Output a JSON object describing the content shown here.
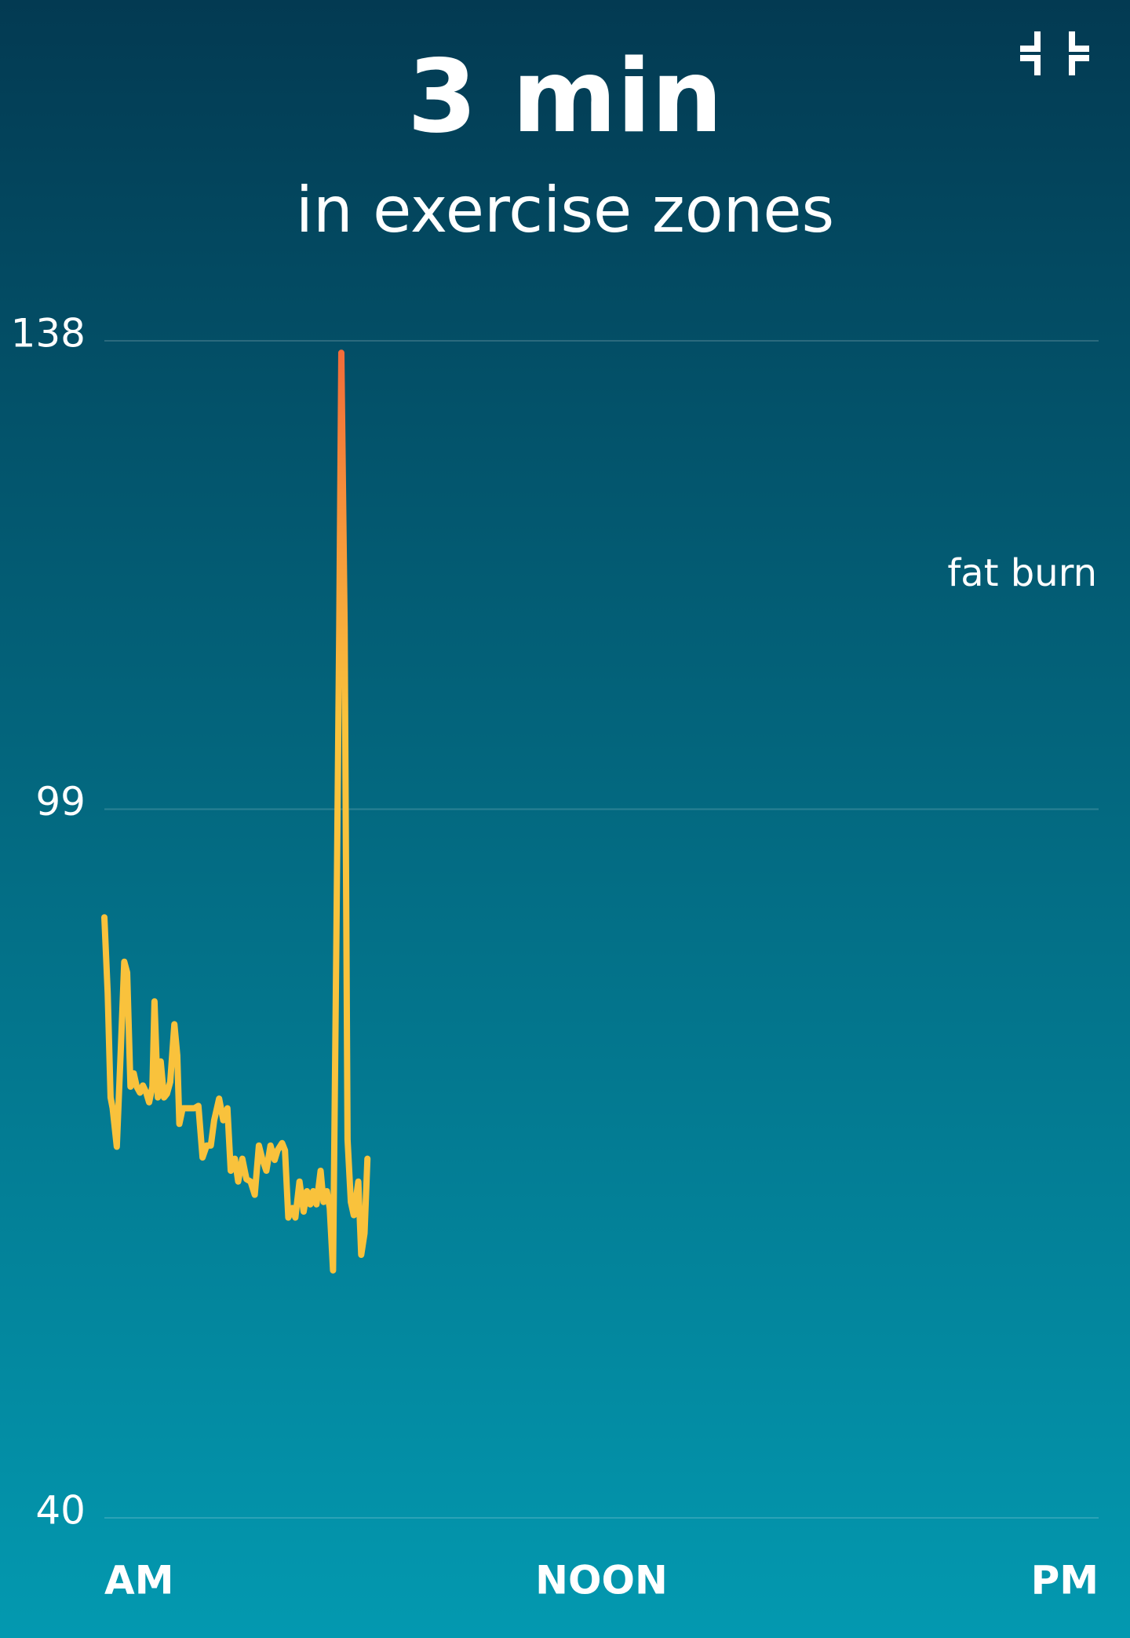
{
  "chart_data": {
    "type": "line",
    "title": "3 min",
    "subtitle": "in exercise zones",
    "annotation": "fat burn",
    "x": [
      0,
      0.08,
      0.15,
      0.2,
      0.3,
      0.4,
      0.48,
      0.55,
      0.63,
      0.71,
      0.78,
      0.86,
      0.93,
      1.01,
      1.08,
      1.16,
      1.21,
      1.29,
      1.36,
      1.44,
      1.51,
      1.59,
      1.69,
      1.76,
      1.81,
      1.89,
      2.02,
      2.17,
      2.27,
      2.37,
      2.47,
      2.57,
      2.65,
      2.77,
      2.87,
      2.97,
      3.05,
      3.15,
      3.23,
      3.33,
      3.43,
      3.53,
      3.63,
      3.73,
      3.81,
      3.91,
      4.01,
      4.11,
      4.18,
      4.29,
      4.36,
      4.44,
      4.54,
      4.61,
      4.71,
      4.81,
      4.89,
      4.97,
      5.04,
      5.12,
      5.22,
      5.29,
      5.37,
      5.44,
      5.52,
      5.6,
      5.67,
      5.72,
      5.8,
      5.87,
      5.95,
      6.02,
      6.13,
      6.2,
      6.28,
      6.35
    ],
    "series": [
      {
        "color": "#f9c23c",
        "values": [
          90,
          83.7,
          75,
          74.1,
          70.9,
          79.3,
          86.3,
          85.4,
          75.9,
          77,
          75.9,
          75.4,
          76,
          75.4,
          74.6,
          75.9,
          83,
          75,
          78,
          75,
          75.3,
          76.3,
          81.1,
          78.5,
          72.8,
          74.1,
          74.1,
          74.1,
          74.3,
          70,
          71,
          71,
          73.1,
          74.9,
          73.1,
          74.1,
          68.9,
          69.9,
          68,
          69.9,
          68.2,
          68,
          66.9,
          71,
          69.9,
          68.9,
          71,
          69.8,
          70.6,
          71.2,
          70.6,
          65,
          65.8,
          65,
          68,
          65.5,
          67.2,
          66.1,
          67.2,
          66.1,
          68.9,
          66.3,
          67.2,
          65.8,
          60.6,
          88,
          114.2,
          137,
          114.2,
          71.5,
          66.3,
          65.2,
          68,
          61.9,
          63.7,
          69.9
        ]
      }
    ],
    "ylim": [
      40,
      138
    ],
    "yticks": [
      40,
      99,
      138
    ],
    "xlim": [
      0,
      24
    ],
    "xticks": [
      {
        "value": 0,
        "label": "AM"
      },
      {
        "value": 12,
        "label": "NOON"
      },
      {
        "value": 24,
        "label": "PM"
      }
    ],
    "grid": true
  }
}
